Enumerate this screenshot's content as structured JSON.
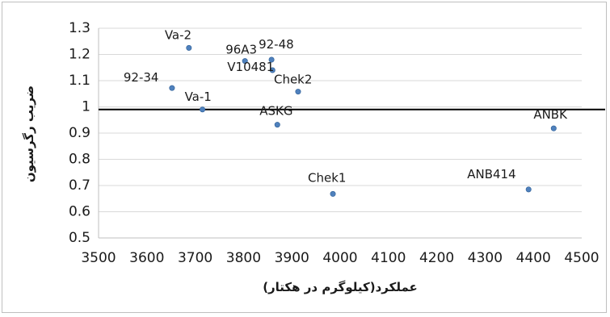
{
  "chart_data": {
    "type": "scatter",
    "xlabel": "عملکرد(کیلوگرم در هکتار)",
    "ylabel": "ضریب رگرسیون",
    "xlim": [
      3500,
      4500
    ],
    "ylim": [
      0.5,
      1.3
    ],
    "xticks": [
      3500,
      3600,
      3700,
      3800,
      3900,
      4000,
      4100,
      4200,
      4300,
      4400,
      4500
    ],
    "yticks": [
      0.5,
      0.6,
      0.7,
      0.8,
      0.9,
      1,
      1.1,
      1.2,
      1.3
    ],
    "ytick_labels": [
      "0.5",
      "0.6",
      "0.7",
      "0.8",
      "0.9",
      "1",
      "1.1",
      "1.2",
      "1.3"
    ],
    "grid": {
      "horizontal": true,
      "vertical": false
    },
    "reference_line_y": 0.99,
    "marker_color": "#4f81bd",
    "points": [
      {
        "label": "Va-2",
        "x": 3687,
        "y": 1.225
      },
      {
        "label": "96A3",
        "x": 3803,
        "y": 1.175
      },
      {
        "label": "92-48",
        "x": 3858,
        "y": 1.18
      },
      {
        "label": "V10481",
        "x": 3860,
        "y": 1.14
      },
      {
        "label": "92-34",
        "x": 3652,
        "y": 1.072
      },
      {
        "label": "Chek2",
        "x": 3913,
        "y": 1.058
      },
      {
        "label": "Va-1",
        "x": 3715,
        "y": 0.99
      },
      {
        "label": "ASKG",
        "x": 3870,
        "y": 0.932
      },
      {
        "label": "ANBK",
        "x": 4442,
        "y": 0.918
      },
      {
        "label": "Chek1",
        "x": 3985,
        "y": 0.668
      },
      {
        "label": "ANB414",
        "x": 4390,
        "y": 0.685
      }
    ]
  }
}
